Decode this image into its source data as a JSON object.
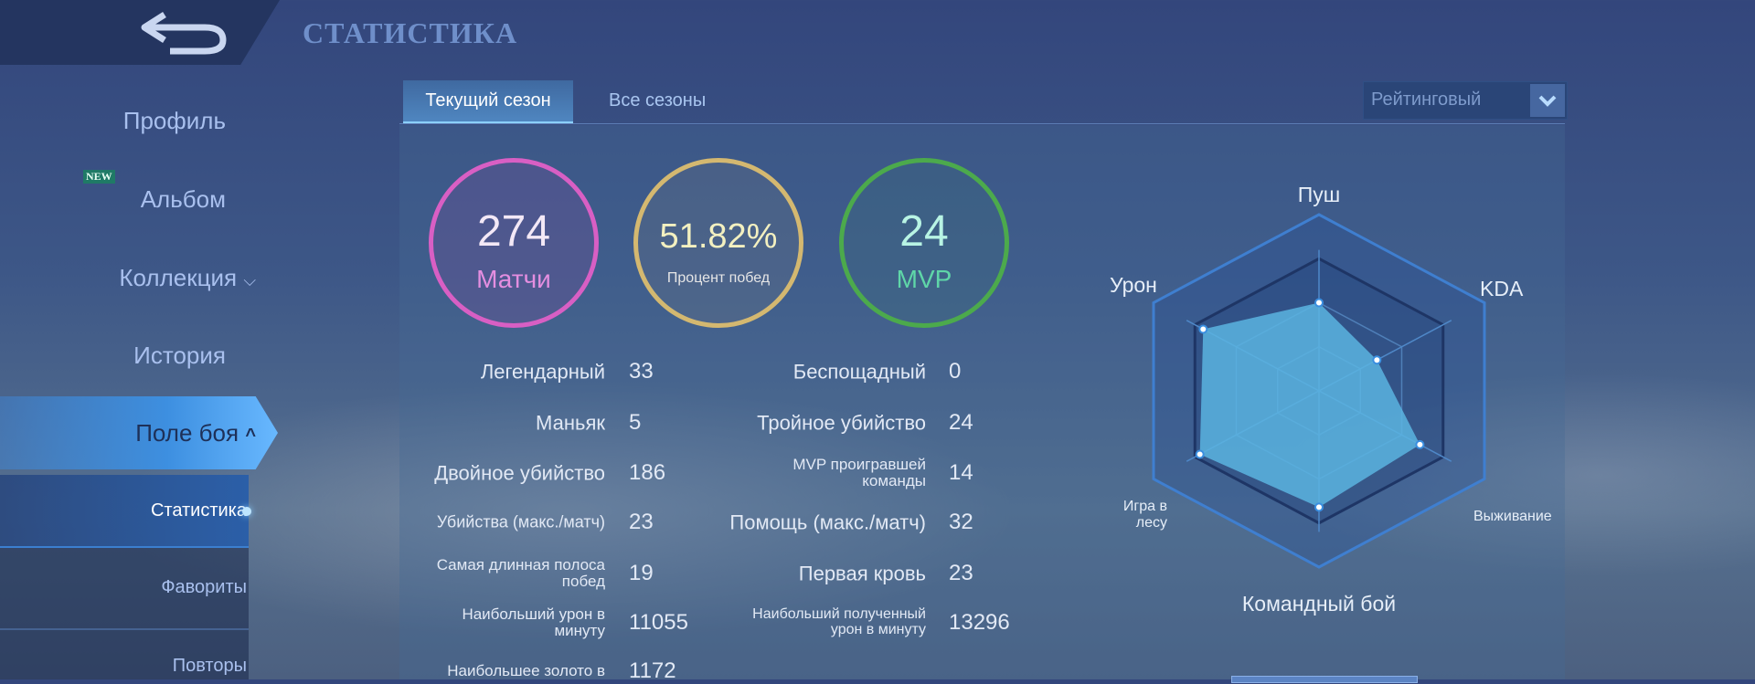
{
  "header": {
    "title": "СТАТИСТИКА",
    "back_icon": "back-arrow-icon"
  },
  "sidebar": {
    "items": [
      {
        "label": "Профиль"
      },
      {
        "label": "Альбом",
        "badge": "NEW"
      },
      {
        "label": "Коллекция"
      },
      {
        "label": "История"
      },
      {
        "label": "Поле боя",
        "active": true
      }
    ],
    "subitems": [
      {
        "label": "Статистика",
        "active": true
      },
      {
        "label": "Фавориты"
      },
      {
        "label": "Повторы"
      }
    ]
  },
  "tabs": [
    {
      "label": "Текущий сезон",
      "active": true
    },
    {
      "label": "Все сезоны"
    }
  ],
  "mode_select": {
    "value": "Рейтинговый"
  },
  "summary": [
    {
      "value": "274",
      "label": "Матчи",
      "color": "#d85fc4"
    },
    {
      "value": "51.82%",
      "label": "Процент побед",
      "color": "#d4b870"
    },
    {
      "value": "24",
      "label": "MVP",
      "color": "#4caa4c"
    }
  ],
  "stats_left": [
    {
      "label": "Легендарный",
      "value": "33"
    },
    {
      "label": "Маньяк",
      "value": "5"
    },
    {
      "label": "Двойное убийство",
      "value": "186"
    },
    {
      "label": "Убийства (макс./матч)",
      "value": "23"
    },
    {
      "label": "Самая длинная полоса побед",
      "value": "19"
    },
    {
      "label": "Наибольший урон в минуту",
      "value": "11055"
    },
    {
      "label": "Наибольшее золото в",
      "value": "1172"
    }
  ],
  "stats_right": [
    {
      "label": "Беспощадный",
      "value": "0"
    },
    {
      "label": "Тройное убийство",
      "value": "24"
    },
    {
      "label": "MVP проигравшей команды",
      "value": "14"
    },
    {
      "label": "Помощь (макс./матч)",
      "value": "32"
    },
    {
      "label": "Первая кровь",
      "value": "23"
    },
    {
      "label": "Наибольший полученный урон в минуту",
      "value": "13296"
    }
  ],
  "chart_data": {
    "type": "radar",
    "categories": [
      "Пуш",
      "KDA",
      "Выживание",
      "Командный бой",
      "Игра в лесу",
      "Урон"
    ],
    "values": [
      50,
      35,
      61,
      66,
      72,
      70
    ],
    "range": [
      0,
      100
    ],
    "fill_color": "#5bb4e0"
  }
}
